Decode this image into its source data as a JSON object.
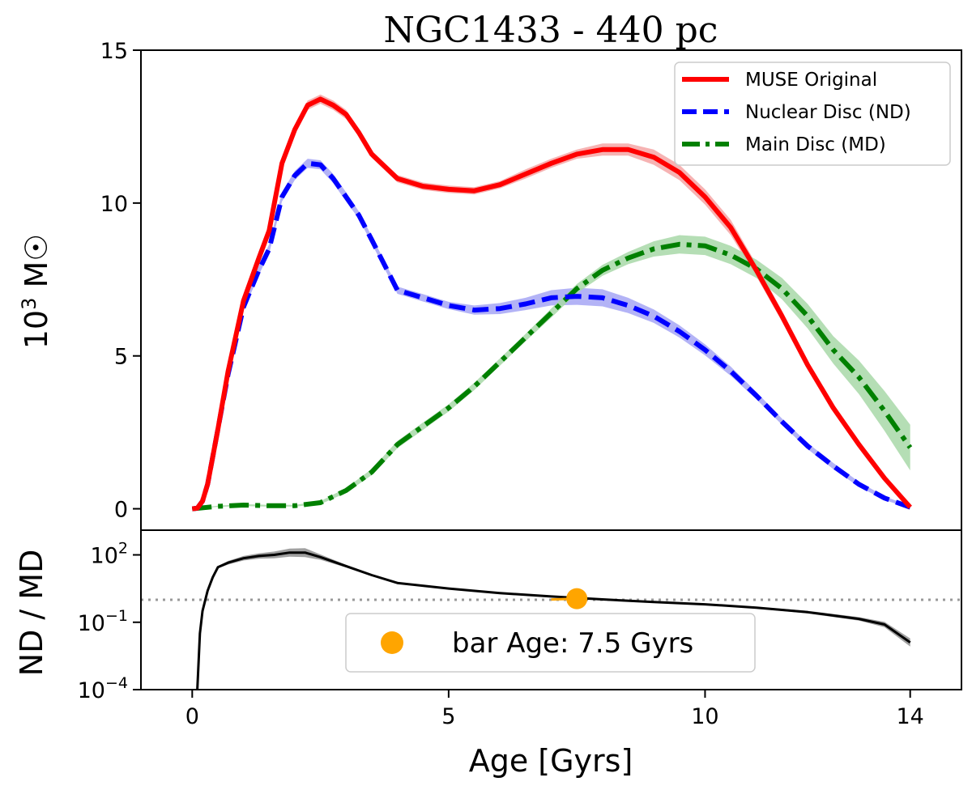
{
  "chart_data": [
    {
      "type": "line",
      "title": "NGC1433 - 440 pc",
      "ylabel": "10³ M☉",
      "ylabel_base": "10",
      "ylabel_exp": "3",
      "ylabel_unit": " M☉",
      "xlim": [
        -1,
        15
      ],
      "ylim": [
        -0.7,
        15
      ],
      "yticks": [
        0,
        5,
        10,
        15
      ],
      "ytick_labels": [
        "0",
        "5",
        "10",
        "15"
      ],
      "legend_position": "top-right",
      "series": [
        {
          "name": "MUSE Original",
          "color": "#ff0000",
          "band_color": "#f4a6a6",
          "style": "solid",
          "x": [
            0,
            0.1,
            0.2,
            0.3,
            0.5,
            0.7,
            1.0,
            1.3,
            1.5,
            1.75,
            2.0,
            2.25,
            2.5,
            2.75,
            3.0,
            3.25,
            3.5,
            4.0,
            4.5,
            5.0,
            5.5,
            6.0,
            6.5,
            7.0,
            7.5,
            8.0,
            8.5,
            9.0,
            9.5,
            10.0,
            10.5,
            11.0,
            11.5,
            12.0,
            12.5,
            13.0,
            13.5,
            14.0
          ],
          "y": [
            0,
            0.02,
            0.25,
            0.8,
            2.6,
            4.5,
            6.8,
            8.2,
            9.1,
            11.3,
            12.4,
            13.2,
            13.4,
            13.2,
            12.9,
            12.3,
            11.6,
            10.8,
            10.55,
            10.45,
            10.4,
            10.6,
            10.95,
            11.3,
            11.6,
            11.75,
            11.75,
            11.5,
            11.0,
            10.2,
            9.2,
            7.8,
            6.3,
            4.7,
            3.3,
            2.1,
            1.0,
            0.05
          ],
          "band": [
            0,
            0,
            0.05,
            0.08,
            0.1,
            0.1,
            0.12,
            0.15,
            0.15,
            0.15,
            0.15,
            0.15,
            0.15,
            0.15,
            0.15,
            0.12,
            0.12,
            0.12,
            0.12,
            0.12,
            0.12,
            0.12,
            0.15,
            0.15,
            0.15,
            0.2,
            0.2,
            0.25,
            0.25,
            0.25,
            0.25,
            0.2,
            0.18,
            0.15,
            0.12,
            0.1,
            0.08,
            0.05
          ]
        },
        {
          "name": "Nuclear Disc (ND)",
          "color": "#0000ff",
          "band_color": "#a6a6f4",
          "style": "dashed",
          "x": [
            0,
            0.1,
            0.2,
            0.3,
            0.5,
            0.7,
            1.0,
            1.3,
            1.5,
            1.75,
            2.0,
            2.25,
            2.5,
            2.75,
            3.0,
            3.25,
            3.5,
            4.0,
            4.5,
            5.0,
            5.5,
            6.0,
            6.5,
            7.0,
            7.5,
            8.0,
            8.5,
            9.0,
            9.5,
            10.0,
            10.5,
            11.0,
            11.5,
            12.0,
            12.5,
            13.0,
            13.5,
            14.0
          ],
          "y": [
            0,
            0.02,
            0.25,
            0.8,
            2.6,
            4.4,
            6.6,
            7.8,
            8.5,
            10.2,
            10.9,
            11.3,
            11.25,
            10.8,
            10.2,
            9.6,
            8.8,
            7.15,
            6.9,
            6.65,
            6.5,
            6.55,
            6.7,
            6.9,
            6.95,
            6.9,
            6.65,
            6.3,
            5.8,
            5.2,
            4.5,
            3.7,
            2.85,
            2.05,
            1.4,
            0.8,
            0.35,
            0.05
          ],
          "band": [
            0,
            0,
            0.05,
            0.08,
            0.1,
            0.1,
            0.12,
            0.15,
            0.15,
            0.15,
            0.15,
            0.15,
            0.15,
            0.15,
            0.15,
            0.12,
            0.12,
            0.12,
            0.12,
            0.12,
            0.15,
            0.18,
            0.2,
            0.25,
            0.28,
            0.28,
            0.25,
            0.22,
            0.2,
            0.18,
            0.15,
            0.12,
            0.1,
            0.1,
            0.1,
            0.08,
            0.06,
            0.04
          ]
        },
        {
          "name": "Main Disc (MD)",
          "color": "#008000",
          "band_color": "#a8d8a8",
          "style": "dashdot",
          "x": [
            0,
            0.5,
            1.0,
            1.5,
            2.0,
            2.5,
            3.0,
            3.5,
            4.0,
            4.5,
            5.0,
            5.5,
            6.0,
            6.5,
            7.0,
            7.5,
            8.0,
            8.5,
            9.0,
            9.5,
            10.0,
            10.5,
            11.0,
            11.5,
            12.0,
            12.5,
            13.0,
            13.5,
            14.0
          ],
          "y": [
            0,
            0.08,
            0.12,
            0.1,
            0.1,
            0.2,
            0.6,
            1.2,
            2.1,
            2.7,
            3.3,
            4.0,
            4.8,
            5.6,
            6.4,
            7.2,
            7.8,
            8.2,
            8.5,
            8.65,
            8.6,
            8.3,
            7.85,
            7.2,
            6.3,
            5.2,
            4.3,
            3.2,
            2.0
          ],
          "band": [
            0,
            0.02,
            0.03,
            0.03,
            0.03,
            0.05,
            0.08,
            0.1,
            0.12,
            0.12,
            0.12,
            0.12,
            0.12,
            0.12,
            0.15,
            0.15,
            0.18,
            0.2,
            0.25,
            0.3,
            0.3,
            0.3,
            0.3,
            0.35,
            0.4,
            0.45,
            0.55,
            0.65,
            0.75
          ]
        }
      ]
    },
    {
      "type": "line",
      "ylabel": "ND / MD",
      "xlabel": "Age [Gyrs]",
      "xlim": [
        -1,
        15
      ],
      "xticks": [
        0,
        5,
        10,
        14
      ],
      "xtick_labels": [
        "0",
        "5",
        "10",
        "14"
      ],
      "yscale": "log",
      "ylim_log10": [
        -4,
        3.1
      ],
      "yticks_log10": [
        2,
        -1,
        -4
      ],
      "ytick_base": "10",
      "ytick_exponents": [
        "2",
        "−1",
        "−4"
      ],
      "reference_line": {
        "y_log10": 0,
        "style": "dotted",
        "color": "#999999"
      },
      "series": [
        {
          "name": "ND / MD",
          "color": "#000000",
          "band_color": "#888888",
          "x": [
            0.1,
            0.15,
            0.2,
            0.3,
            0.4,
            0.5,
            0.7,
            1.0,
            1.3,
            1.6,
            1.9,
            2.2,
            2.5,
            3.0,
            3.5,
            4.0,
            5.0,
            6.0,
            7.0,
            8.0,
            9.0,
            10.0,
            11.0,
            12.0,
            13.0,
            13.5,
            14.0
          ],
          "y_log10": [
            -4.0,
            -1.5,
            -0.5,
            0.4,
            1.0,
            1.45,
            1.65,
            1.85,
            1.95,
            2.0,
            2.1,
            2.1,
            1.9,
            1.5,
            1.1,
            0.75,
            0.5,
            0.3,
            0.15,
            0.02,
            -0.1,
            -0.2,
            -0.35,
            -0.55,
            -0.85,
            -1.1,
            -1.9
          ],
          "band": [
            0,
            0,
            0,
            0.05,
            0.05,
            0.05,
            0.08,
            0.1,
            0.12,
            0.15,
            0.18,
            0.2,
            0.12,
            0.06,
            0.04,
            0.03,
            0.02,
            0.02,
            0.02,
            0.02,
            0.02,
            0.03,
            0.04,
            0.06,
            0.08,
            0.12,
            0.18
          ]
        }
      ],
      "highlight": {
        "label": "bar Age: 7.5 Gyrs",
        "x": 7.5,
        "y_log10": 0.05,
        "segment_x": [
          7.0,
          7.5
        ],
        "color": "#ffa500"
      },
      "legend_position": "lower-center"
    }
  ]
}
